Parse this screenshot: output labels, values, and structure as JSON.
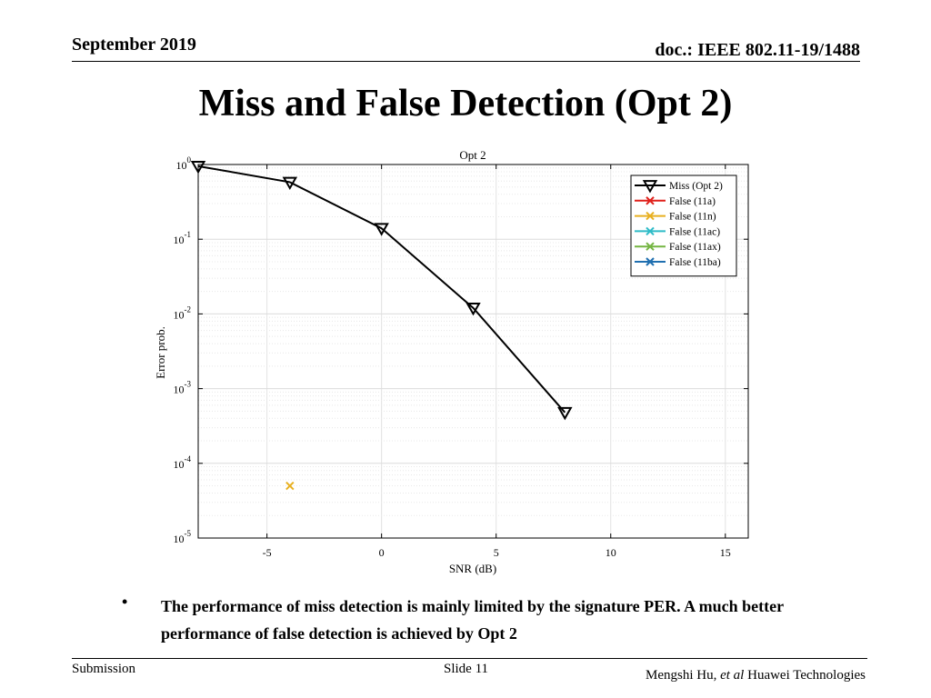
{
  "header": {
    "date": "September 2019",
    "doc": "doc.: IEEE 802.11-19/1488"
  },
  "slide_title": "Miss and False Detection (Opt 2)",
  "bullets": [
    "The performance of miss detection is mainly limited by the signature PER. A much better performance of false detection is achieved by Opt 2"
  ],
  "footer": {
    "left": "Submission",
    "center": "Slide 11",
    "author": "Mengshi Hu,",
    "etal": "et al",
    "org": "Huawei Technologies"
  },
  "chart_data": {
    "type": "line",
    "title": "Opt 2",
    "xlabel": "SNR (dB)",
    "ylabel": "Error prob.",
    "xlim": [
      -8,
      16
    ],
    "ylim": [
      1e-05,
      1
    ],
    "yscale": "log",
    "xticks": [
      -5,
      0,
      5,
      10,
      15
    ],
    "yticks": [
      {
        "base": "10",
        "exp": "0",
        "value": 1
      },
      {
        "base": "10",
        "exp": "-1",
        "value": 0.1
      },
      {
        "base": "10",
        "exp": "-2",
        "value": 0.01
      },
      {
        "base": "10",
        "exp": "-3",
        "value": 0.001
      },
      {
        "base": "10",
        "exp": "-4",
        "value": 0.0001
      },
      {
        "base": "10",
        "exp": "-5",
        "value": 1e-05
      }
    ],
    "grid": true,
    "legend": "top-right",
    "series": [
      {
        "name": "Miss (Opt 2)",
        "color": "#000000",
        "marker": "triangle-down",
        "x": [
          -8,
          -4,
          0,
          4,
          8
        ],
        "y": [
          0.95,
          0.58,
          0.14,
          0.012,
          0.00048
        ]
      },
      {
        "name": "False (11a)",
        "color": "#e0201b",
        "marker": "x",
        "x": [],
        "y": []
      },
      {
        "name": "False (11n)",
        "color": "#e8b020",
        "marker": "x",
        "x": [
          -4
        ],
        "y": [
          5e-05
        ]
      },
      {
        "name": "False (11ac)",
        "color": "#2fbcc8",
        "marker": "x",
        "x": [],
        "y": []
      },
      {
        "name": "False (11ax)",
        "color": "#74b542",
        "marker": "x",
        "x": [],
        "y": []
      },
      {
        "name": "False (11ba)",
        "color": "#1f6fb0",
        "marker": "x",
        "x": [],
        "y": []
      }
    ]
  }
}
